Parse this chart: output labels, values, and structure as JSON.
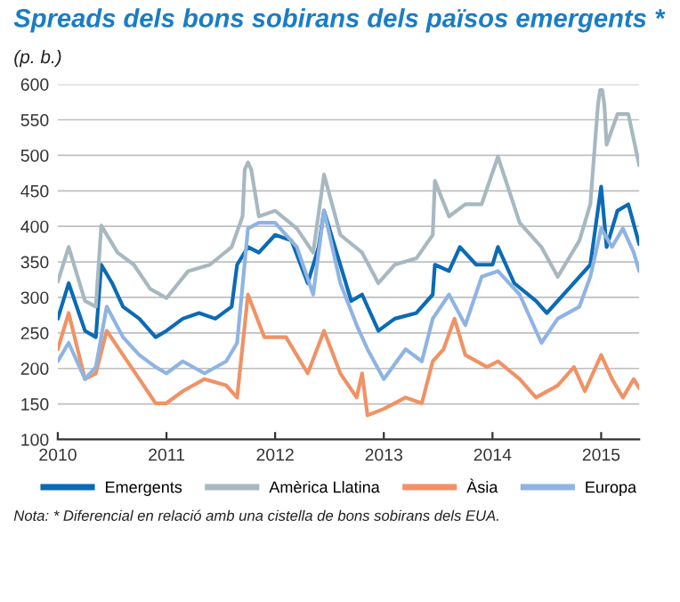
{
  "chart_data": {
    "type": "line",
    "title": "Spreads dels bons sobirans dels països emergents *",
    "subtitle": "(p. b.)",
    "annotations": [
      "Nota: * Diferencial en relació amb una cistella de bons sobirans dels EUA."
    ],
    "xlim": [
      2010,
      2015.35
    ],
    "xticks": [
      2010,
      2011,
      2012,
      2013,
      2014,
      2015
    ],
    "ylim": [
      100,
      600
    ],
    "yticks": [
      100,
      150,
      200,
      250,
      300,
      350,
      400,
      450,
      500,
      550,
      600
    ],
    "grid": "y",
    "legend": "bottom",
    "line_style": "solid",
    "marker": "none",
    "series": [
      {
        "name": "Emergents",
        "color": "#0b6bb5",
        "x": [
          2010.0,
          2010.1,
          2010.25,
          2010.35,
          2010.4,
          2010.5,
          2010.6,
          2010.75,
          2010.9,
          2011.0,
          2011.15,
          2011.3,
          2011.45,
          2011.6,
          2011.65,
          2011.75,
          2011.85,
          2012.0,
          2012.15,
          2012.3,
          2012.4,
          2012.45,
          2012.55,
          2012.7,
          2012.8,
          2012.95,
          2013.1,
          2013.3,
          2013.45,
          2013.47,
          2013.6,
          2013.7,
          2013.85,
          2014.0,
          2014.05,
          2014.2,
          2014.4,
          2014.5,
          2014.7,
          2014.9,
          2015.0,
          2015.05,
          2015.15,
          2015.25,
          2015.35
        ],
        "values": [
          270,
          320,
          253,
          244,
          346,
          320,
          287,
          270,
          244,
          253,
          270,
          278,
          270,
          287,
          346,
          371,
          363,
          388,
          380,
          320,
          371,
          422,
          371,
          295,
          304,
          253,
          270,
          278,
          304,
          346,
          337,
          371,
          346,
          346,
          371,
          320,
          295,
          278,
          312,
          346,
          456,
          371,
          422,
          431,
          375
        ]
      },
      {
        "name": "Amèrica Llatina",
        "color": "#a7b8c0",
        "x": [
          2010.0,
          2010.1,
          2010.25,
          2010.35,
          2010.4,
          2010.55,
          2010.7,
          2010.85,
          2011.0,
          2011.2,
          2011.4,
          2011.6,
          2011.7,
          2011.72,
          2011.75,
          2011.78,
          2011.85,
          2012.0,
          2012.2,
          2012.35,
          2012.45,
          2012.6,
          2012.8,
          2012.95,
          2013.1,
          2013.3,
          2013.45,
          2013.47,
          2013.6,
          2013.75,
          2013.9,
          2014.05,
          2014.25,
          2014.45,
          2014.6,
          2014.8,
          2014.9,
          2014.97,
          2014.99,
          2015.01,
          2015.03,
          2015.05,
          2015.15,
          2015.25,
          2015.35
        ],
        "values": [
          322,
          371,
          295,
          287,
          401,
          363,
          346,
          312,
          299,
          337,
          346,
          371,
          414,
          480,
          490,
          480,
          414,
          422,
          397,
          363,
          473,
          388,
          363,
          320,
          346,
          355,
          388,
          464,
          414,
          431,
          431,
          498,
          405,
          371,
          329,
          380,
          431,
          570,
          592,
          592,
          570,
          515,
          558,
          558,
          486
        ]
      },
      {
        "name": "Àsia",
        "color": "#f09265",
        "x": [
          2010.0,
          2010.1,
          2010.25,
          2010.35,
          2010.45,
          2010.6,
          2010.75,
          2010.9,
          2011.0,
          2011.15,
          2011.35,
          2011.55,
          2011.65,
          2011.75,
          2011.9,
          2012.1,
          2012.3,
          2012.45,
          2012.6,
          2012.75,
          2012.8,
          2012.85,
          2013.0,
          2013.2,
          2013.35,
          2013.45,
          2013.55,
          2013.65,
          2013.75,
          2013.95,
          2014.05,
          2014.25,
          2014.4,
          2014.6,
          2014.75,
          2014.85,
          2015.0,
          2015.1,
          2015.2,
          2015.3,
          2015.35
        ],
        "values": [
          227,
          278,
          185,
          193,
          253,
          219,
          185,
          151,
          151,
          168,
          185,
          176,
          159,
          304,
          244,
          244,
          193,
          253,
          193,
          159,
          193,
          134,
          143,
          159,
          151,
          210,
          227,
          270,
          219,
          202,
          210,
          185,
          159,
          176,
          202,
          168,
          219,
          185,
          159,
          185,
          172
        ]
      },
      {
        "name": "Europa",
        "color": "#8fb4e3",
        "x": [
          2010.0,
          2010.1,
          2010.25,
          2010.35,
          2010.45,
          2010.6,
          2010.75,
          2010.9,
          2011.0,
          2011.15,
          2011.35,
          2011.55,
          2011.65,
          2011.75,
          2011.85,
          2012.0,
          2012.2,
          2012.35,
          2012.45,
          2012.6,
          2012.75,
          2012.85,
          2013.0,
          2013.2,
          2013.35,
          2013.45,
          2013.6,
          2013.75,
          2013.9,
          2014.05,
          2014.25,
          2014.45,
          2014.6,
          2014.8,
          2014.9,
          2015.0,
          2015.1,
          2015.2,
          2015.3,
          2015.35
        ],
        "values": [
          210,
          236,
          185,
          202,
          287,
          244,
          219,
          202,
          193,
          210,
          193,
          210,
          236,
          397,
          405,
          405,
          371,
          304,
          422,
          320,
          261,
          227,
          185,
          227,
          210,
          270,
          304,
          261,
          329,
          337,
          304,
          236,
          270,
          287,
          329,
          397,
          371,
          397,
          363,
          337
        ]
      }
    ]
  }
}
